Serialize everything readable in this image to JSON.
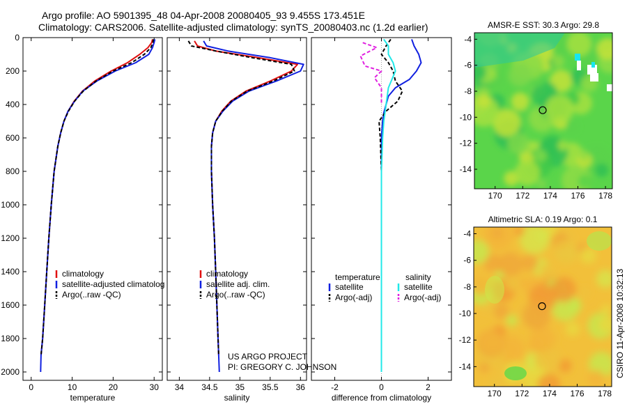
{
  "header": {
    "line1": "Argo profile: AO 5901395_48 04-Apr-2008 20080405_93 9.455S 173.451E",
    "line2": "Climatology: CARS2006. Satellite-adjusted climatology: synTS_20080403.nc (1.2d earlier)"
  },
  "side_stamp": "CSIRO 11-Apr-2008 10:32:13",
  "watermark": {
    "line1": "US ARGO PROJECT",
    "line2": "PI: GREGORY C. JOHNSON"
  },
  "colors": {
    "climatology": "#e01010",
    "satellite_adjusted": "#1020e0",
    "argo": "#000000",
    "satellite_diff": "#20e8e8",
    "argo_adj_salinity": "#e020e0"
  },
  "chart_data": [
    {
      "id": "temperature",
      "type": "line",
      "xlabel": "temperature",
      "ylabel": "",
      "xlim": [
        -2,
        32
      ],
      "ylim": [
        2050,
        0
      ],
      "xticks": [
        0,
        10,
        20,
        30
      ],
      "yticks": [
        0,
        200,
        400,
        600,
        800,
        1000,
        1200,
        1400,
        1600,
        1800,
        2000
      ],
      "legend": {
        "position": "lower-right",
        "items": [
          {
            "label": "climatology",
            "color": "#e01010"
          },
          {
            "label": "satellite-adjusted climatolog",
            "color": "#1020e0"
          },
          {
            "label": "Argo(..raw -QC)",
            "color": "#000000",
            "dashed": true
          }
        ]
      },
      "series": [
        {
          "name": "climatology",
          "color": "#e01010",
          "dashed": false,
          "x": [
            29.6,
            29.4,
            28.5,
            26.5,
            23.5,
            19.5,
            15.5,
            12.5,
            10.5,
            9.0,
            8.0,
            7.2,
            6.5,
            5.6,
            4.9,
            4.3,
            3.8,
            3.3,
            2.8,
            2.4
          ],
          "y": [
            10,
            30,
            60,
            100,
            150,
            200,
            260,
            320,
            380,
            440,
            500,
            570,
            650,
            800,
            1000,
            1200,
            1400,
            1600,
            1800,
            1900
          ]
        },
        {
          "name": "satellite-adjusted climatology",
          "color": "#1020e0",
          "dashed": false,
          "x": [
            30.2,
            30.0,
            29.6,
            28.7,
            25.5,
            20.5,
            16.0,
            12.6,
            10.6,
            9.0,
            8.0,
            7.2,
            6.5,
            5.6,
            4.9,
            4.3,
            3.8,
            3.3,
            2.8,
            2.4,
            2.3
          ],
          "y": [
            10,
            30,
            60,
            100,
            150,
            200,
            260,
            320,
            380,
            440,
            500,
            570,
            650,
            800,
            1000,
            1200,
            1400,
            1600,
            1800,
            1900,
            2000
          ]
        },
        {
          "name": "Argo(..raw -QC)",
          "color": "#000000",
          "dashed": true,
          "x": [
            29.8,
            29.7,
            29.2,
            27.6,
            24.5,
            20.0,
            15.8,
            12.7,
            10.6,
            9.1,
            8.0,
            7.2,
            6.5,
            5.6,
            4.9,
            4.3,
            3.8,
            3.3,
            2.8,
            2.4
          ],
          "y": [
            10,
            30,
            60,
            100,
            150,
            200,
            260,
            320,
            380,
            440,
            500,
            570,
            650,
            800,
            1000,
            1200,
            1400,
            1600,
            1800,
            1900
          ]
        }
      ]
    },
    {
      "id": "salinity",
      "type": "line",
      "xlabel": "salinity",
      "ylabel": "",
      "xlim": [
        33.8,
        36.1
      ],
      "ylim": [
        2050,
        0
      ],
      "xticks": [
        34,
        34.5,
        35,
        35.5,
        36
      ],
      "legend": {
        "position": "lower-right",
        "items": [
          {
            "label": "climatology",
            "color": "#e01010"
          },
          {
            "label": "satellite adj. clim.",
            "color": "#1020e0"
          },
          {
            "label": "Argo(..raw -QC)",
            "color": "#000000",
            "dashed": true
          }
        ]
      },
      "series": [
        {
          "name": "climatology",
          "color": "#e01010",
          "dashed": false,
          "x": [
            34.25,
            34.3,
            34.6,
            35.3,
            35.95,
            35.85,
            35.5,
            35.1,
            34.85,
            34.7,
            34.6,
            34.55,
            34.53,
            34.53,
            34.55,
            34.58,
            34.6,
            34.62,
            34.64,
            34.65
          ],
          "y": [
            20,
            50,
            80,
            120,
            160,
            200,
            260,
            320,
            380,
            440,
            500,
            570,
            650,
            800,
            1000,
            1200,
            1400,
            1600,
            1800,
            1900
          ]
        },
        {
          "name": "satellite adj. clim.",
          "color": "#1020e0",
          "dashed": false,
          "x": [
            34.4,
            34.45,
            34.8,
            35.5,
            36.05,
            36.0,
            35.6,
            35.15,
            34.88,
            34.72,
            34.6,
            34.55,
            34.53,
            34.53,
            34.55,
            34.58,
            34.6,
            34.62,
            34.64,
            34.65,
            34.66
          ],
          "y": [
            20,
            50,
            80,
            120,
            160,
            200,
            260,
            320,
            380,
            440,
            500,
            570,
            650,
            800,
            1000,
            1200,
            1400,
            1600,
            1800,
            1900,
            2000
          ]
        },
        {
          "name": "Argo(..raw -QC)",
          "color": "#000000",
          "dashed": true,
          "x": [
            34.15,
            34.2,
            34.6,
            35.2,
            35.85,
            35.9,
            35.55,
            35.12,
            34.86,
            34.71,
            34.6,
            34.55,
            34.53,
            34.53,
            34.55,
            34.58,
            34.6,
            34.62,
            34.64,
            34.65
          ],
          "y": [
            20,
            50,
            80,
            120,
            160,
            200,
            260,
            320,
            380,
            440,
            500,
            570,
            650,
            800,
            1000,
            1200,
            1400,
            1600,
            1800,
            1900
          ]
        }
      ]
    },
    {
      "id": "difference",
      "type": "line",
      "xlabel": "difference from climatology",
      "ylabel": "",
      "xlim": [
        -3,
        3
      ],
      "ylim": [
        2050,
        0
      ],
      "xticks": [
        -2,
        0,
        2
      ],
      "legend": {
        "position": "lower-right",
        "columns": [
          {
            "heading": "temperature",
            "items": [
              {
                "label": "satellite",
                "color": "#1020e0"
              },
              {
                "label": "Argo(-adj)",
                "color": "#000000",
                "dashed": true
              }
            ]
          },
          {
            "heading": "salinity",
            "items": [
              {
                "label": "satellite",
                "color": "#20e8e8"
              },
              {
                "label": "Argo(-adj)",
                "color": "#e020e0",
                "dashed": true
              }
            ]
          }
        ]
      },
      "series": [
        {
          "name": "temperature satellite",
          "color": "#1020e0",
          "dashed": false,
          "x": [
            1.3,
            1.4,
            1.6,
            1.7,
            1.5,
            1.2,
            0.6,
            0.3,
            0.2,
            0.1,
            0.05,
            0.0,
            0.0,
            0.0,
            0.0,
            0.0
          ],
          "y": [
            10,
            50,
            100,
            150,
            200,
            250,
            300,
            350,
            400,
            450,
            500,
            600,
            800,
            1200,
            1600,
            2000
          ]
        },
        {
          "name": "temperature Argo(-adj)",
          "color": "#000000",
          "dashed": true,
          "x": [
            0.4,
            0.2,
            0.0,
            0.3,
            0.5,
            0.6,
            0.9,
            0.7,
            0.2,
            -0.1,
            -0.05,
            0.0,
            0.0,
            0.0
          ],
          "y": [
            10,
            50,
            100,
            150,
            200,
            260,
            320,
            380,
            440,
            500,
            600,
            800,
            1200,
            1900
          ]
        },
        {
          "name": "salinity satellite",
          "color": "#20e8e8",
          "dashed": false,
          "x": [
            0.1,
            0.3,
            0.3,
            0.5,
            0.6,
            0.3,
            0.2,
            0.1,
            0.05,
            0.0,
            0.0,
            0.0
          ],
          "y": [
            10,
            50,
            100,
            150,
            200,
            300,
            400,
            500,
            600,
            800,
            1200,
            2000
          ]
        },
        {
          "name": "salinity Argo(-adj)",
          "color": "#e020e0",
          "dashed": true,
          "x": [
            -0.8,
            -0.2,
            -0.9,
            -0.7,
            0.0,
            -0.3,
            0.0,
            0.0
          ],
          "y": [
            30,
            60,
            110,
            170,
            200,
            240,
            300,
            400
          ]
        }
      ]
    },
    {
      "id": "sst_map",
      "type": "heatmap",
      "title": "AMSR-E SST: 30.3 Argo: 29.8",
      "xlim": [
        168.5,
        178.5
      ],
      "ylim": [
        -15.5,
        -3.5
      ],
      "xticks": [
        170,
        172,
        174,
        176,
        178
      ],
      "yticks": [
        -4,
        -6,
        -8,
        -10,
        -12,
        -14
      ],
      "marker": {
        "lon": 173.451,
        "lat": -9.455
      }
    },
    {
      "id": "sla_map",
      "type": "heatmap",
      "title": "Altimetric SLA: 0.19 Argo: 0.1",
      "xlim": [
        168.5,
        178.5
      ],
      "ylim": [
        -15.5,
        -3.5
      ],
      "xticks": [
        170,
        172,
        174,
        176,
        178
      ],
      "yticks": [
        -4,
        -6,
        -8,
        -10,
        -12,
        -14
      ],
      "marker": {
        "lon": 173.451,
        "lat": -9.455
      }
    }
  ]
}
